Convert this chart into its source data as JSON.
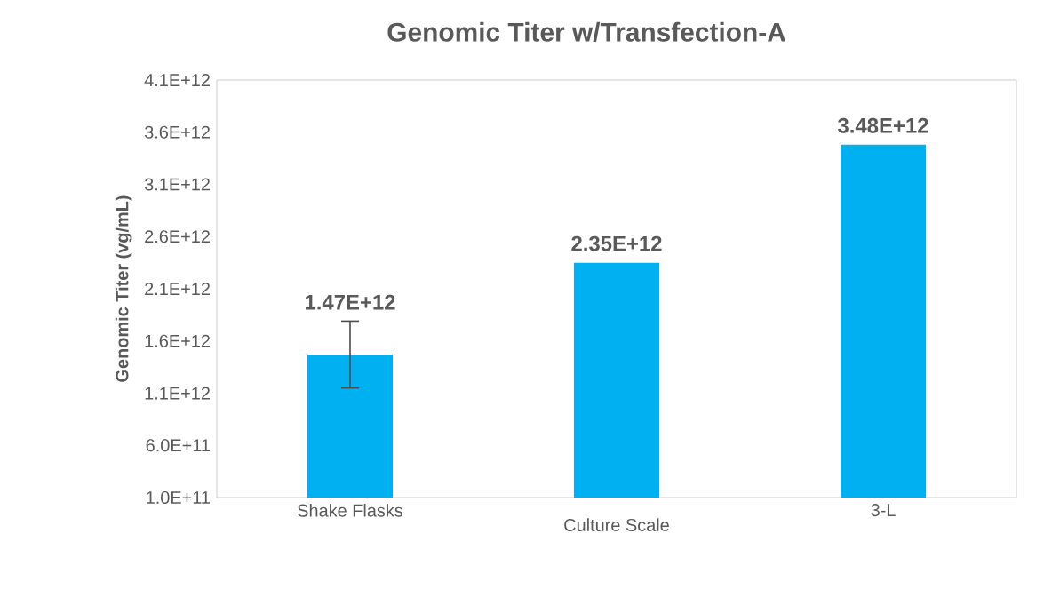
{
  "chart_data": {
    "type": "bar",
    "title": "Genomic Titer w/Transfection-A",
    "xlabel": "Culture Scale",
    "ylabel": "Genomic Titer (vg/mL)",
    "categories": [
      "Shake Flasks",
      null,
      "3-L"
    ],
    "values": [
      1470000000000.0,
      2350000000000.0,
      3480000000000.0
    ],
    "colors": [
      "#00b0f0",
      "#00b0f0",
      "#00b0f0"
    ],
    "errors": [
      320000000000.0,
      null,
      null
    ],
    "value_labels": [
      "1.47E+12",
      "2.35E+12",
      "3.48E+12"
    ],
    "ylim": [
      100000000000.0,
      4100000000000.0
    ],
    "yticks": [
      {
        "value": 100000000000.0,
        "label": "1.0E+11"
      },
      {
        "value": 600000000000.0,
        "label": "6.0E+11"
      },
      {
        "value": 1100000000000.0,
        "label": "1.1E+12"
      },
      {
        "value": 1600000000000.0,
        "label": "1.6E+12"
      },
      {
        "value": 2100000000000.0,
        "label": "2.1E+12"
      },
      {
        "value": 2600000000000.0,
        "label": "2.6E+12"
      },
      {
        "value": 3100000000000.0,
        "label": "3.1E+12"
      },
      {
        "value": 3600000000000.0,
        "label": "3.6E+12"
      },
      {
        "value": 4100000000000.0,
        "label": "4.1E+12"
      }
    ],
    "grid": false
  }
}
